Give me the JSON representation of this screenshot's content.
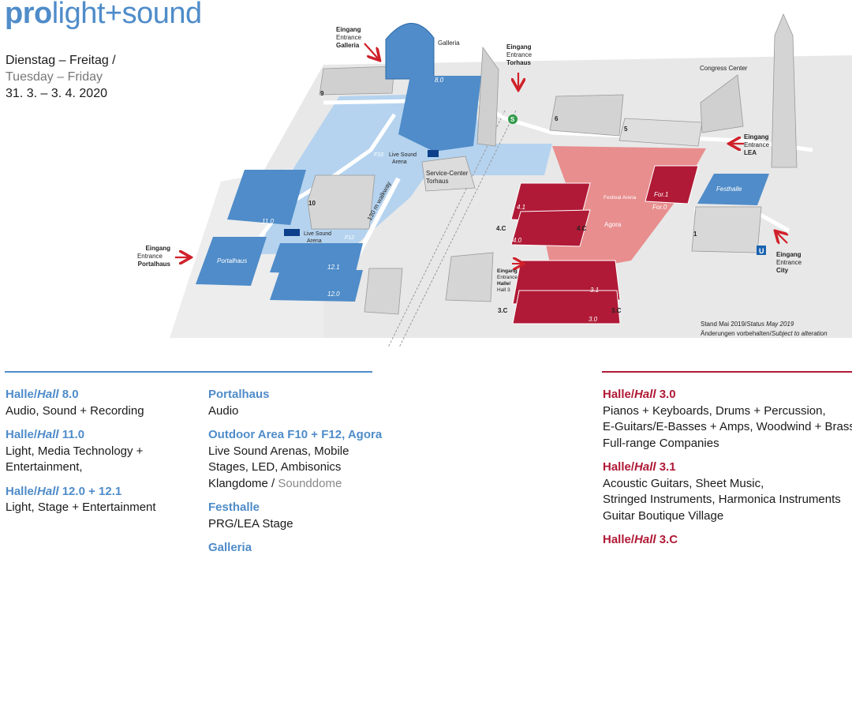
{
  "logo": {
    "bold": "pro",
    "rest": "light+sound"
  },
  "dates": {
    "de": "Dienstag – Freitag /",
    "en": "Tuesday – Friday",
    "range": "31. 3. – 3. 4. 2020"
  },
  "map": {
    "entrances": {
      "galleria": [
        "Eingang",
        "Entrance",
        "Galleria"
      ],
      "torhaus": [
        "Eingang",
        "Entrance",
        "Torhaus"
      ],
      "lea": [
        "Eingang",
        "Entrance",
        "LEA"
      ],
      "portalhaus": [
        "Eingang",
        "Entrance",
        "Portalhaus"
      ],
      "city": [
        "Eingang",
        "Entrance",
        "City"
      ],
      "hall3": [
        "Eingang",
        "Entrance",
        "Halle/",
        "Hall 3"
      ]
    },
    "labels": {
      "galleria": "Galleria",
      "congress": "Congress Center",
      "service": [
        "Service-Center",
        "Torhaus"
      ],
      "live_sound_a": [
        "Live Sound",
        "Arena"
      ],
      "live_sound_b": [
        "Live Sound",
        "Arena"
      ],
      "f10": "F10",
      "f12": "F12",
      "walkway": "130 m walkway",
      "festival": "Festival Arena",
      "agora": "Agora",
      "s_bahn": "S",
      "u_bahn": "U",
      "stand": "Stand Mai 2019/",
      "stand_en": "Status May 2019",
      "changes": "Änderungen vorbehalten/",
      "changes_en": "Subject to alteration"
    },
    "halls": {
      "h8": "8.0",
      "h11": "11.0",
      "h121": "12.1",
      "h120": "12.0",
      "portal": "Portalhaus",
      "h41": "4.1",
      "h40": "4.0",
      "h31": "3.1",
      "h30": "3.0",
      "for1": "For.1",
      "for0": "For.0",
      "festhalle": "Festhalle",
      "n9": "9",
      "n10": "10",
      "n6": "6",
      "n5": "5",
      "n1": "1",
      "c4a": "4.C",
      "c4b": "4.C",
      "c3a": "3.C",
      "c3b": "3.C"
    }
  },
  "legend": {
    "col1": [
      {
        "title": "Halle/",
        "title_it": "Hall",
        "num": " 8.0",
        "lines": [
          "Audio, Sound + Recording"
        ]
      },
      {
        "title": "Halle/",
        "title_it": "Hall",
        "num": " 11.0",
        "lines": [
          "Light, Media Technology +",
          "Entertainment,"
        ]
      },
      {
        "title": "Halle/",
        "title_it": "Hall",
        "num": " 12.0 + 12.1",
        "lines": [
          "Light, Stage + Entertainment"
        ]
      }
    ],
    "col2": [
      {
        "title": "Portalhaus",
        "lines": [
          "Audio"
        ]
      },
      {
        "title": "Outdoor Area F10 + F12, Agora",
        "lines": [
          "Live Sound Arenas, Mobile",
          "Stages, LED, Ambisonics"
        ],
        "last_a": "Klangdome / ",
        "last_b": "Sounddome"
      },
      {
        "title": "Festhalle",
        "lines": [
          "PRG/LEA Stage"
        ]
      },
      {
        "title": "Galleria",
        "lines": []
      }
    ],
    "col3": [
      {
        "title": "Halle/",
        "title_it": "Hall",
        "num": " 3.0",
        "lines": [
          "Pianos + Keyboards, Drums + Percussion,",
          "E-Guitars/E-Basses + Amps, Woodwind + Brass",
          "Full-range Companies"
        ]
      },
      {
        "title": "Halle/",
        "title_it": "Hall",
        "num": " 3.1",
        "lines": [
          "Acoustic Guitars, Sheet Music,",
          "Stringed Instruments, Harmonica Instruments",
          "Guitar Boutique Village"
        ]
      },
      {
        "title": "Halle/",
        "title_it": "Hall",
        "num": " 3.C",
        "lines": []
      }
    ]
  },
  "colors": {
    "blue": "#4f8cc9",
    "light_blue": "#b5d3ef",
    "dark_blue": "#0d3f8a",
    "red": "#b01a36",
    "pink": "#e88e8e",
    "grey": "#d9d9d9",
    "arrow": "#d0202a"
  }
}
